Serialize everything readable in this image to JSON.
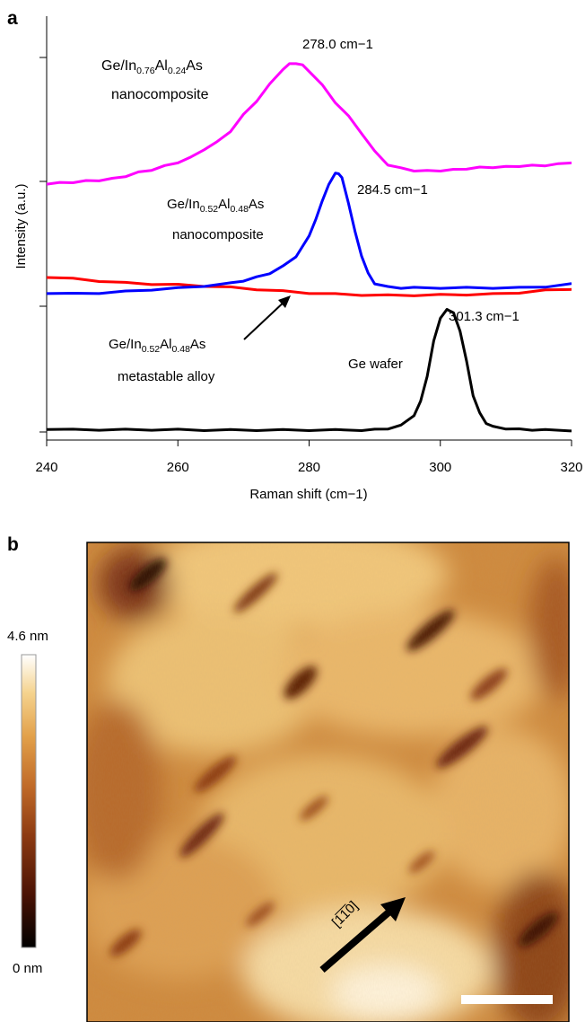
{
  "panels": {
    "a": "a",
    "b": "b"
  },
  "chart_data": {
    "type": "line",
    "xlabel": "Raman shift (cm−1)",
    "ylabel": "Intensity (a.u.)",
    "xlim": [
      240,
      320
    ],
    "ylim": [
      0,
      100
    ],
    "x_ticks": [
      240,
      260,
      280,
      300,
      320
    ],
    "x_tick_labels": [
      "240",
      "260",
      "280",
      "300",
      "320"
    ],
    "grid": false,
    "legend": "none",
    "series": [
      {
        "name": "Ge/In0.76Al0.24As nanocomposite",
        "color": "#ff00ff",
        "x": [
          240,
          242,
          244,
          246,
          248,
          250,
          252,
          254,
          256,
          258,
          260,
          262,
          264,
          266,
          268,
          270,
          272,
          274,
          276,
          277,
          278,
          279,
          280,
          282,
          284,
          286,
          288,
          290,
          292,
          294,
          296,
          298,
          300,
          302,
          304,
          306,
          308,
          310,
          312,
          314,
          316,
          318,
          320
        ],
        "y": [
          66.3,
          66.5,
          66.7,
          67.0,
          67.2,
          67.6,
          68.3,
          69.3,
          70.0,
          71.0,
          72.0,
          73.3,
          75.5,
          77.4,
          80.3,
          84.7,
          88.4,
          92.8,
          96.9,
          98.2,
          98.5,
          97.9,
          96.4,
          92.6,
          88.0,
          84.3,
          79.8,
          74.9,
          71.4,
          70.4,
          69.8,
          69.7,
          69.8,
          70.0,
          70.3,
          70.6,
          70.7,
          70.8,
          71.0,
          71.1,
          71.2,
          71.5,
          72.0
        ]
      },
      {
        "name": "Ge/In0.52Al0.48As nanocomposite",
        "color": "#0000ff",
        "x": [
          240,
          244,
          248,
          252,
          256,
          260,
          264,
          268,
          270,
          272,
          274,
          276,
          278,
          280,
          281,
          282,
          283,
          284,
          284.5,
          285,
          286,
          287,
          288,
          289,
          290,
          292,
          294,
          296,
          300,
          304,
          308,
          312,
          316,
          320
        ],
        "y": [
          37.1,
          36.9,
          37.1,
          37.5,
          38.0,
          38.4,
          39.0,
          39.7,
          40.4,
          41.3,
          42.4,
          44.2,
          46.9,
          52.2,
          56.8,
          61.5,
          66.2,
          69.0,
          69.1,
          67.8,
          61.2,
          53.4,
          47.1,
          42.3,
          39.7,
          38.7,
          38.5,
          38.5,
          38.5,
          38.5,
          38.5,
          38.5,
          38.8,
          39.5
        ]
      },
      {
        "name": "Ge/In0.52Al0.48As metastable alloy",
        "color": "#ff0000",
        "x": [
          240,
          244,
          248,
          252,
          256,
          260,
          264,
          268,
          272,
          276,
          280,
          284,
          288,
          292,
          296,
          300,
          304,
          308,
          312,
          316,
          320
        ],
        "y": [
          41.4,
          40.9,
          40.3,
          39.8,
          39.5,
          39.3,
          39.0,
          38.6,
          38.1,
          37.6,
          37.1,
          36.8,
          36.6,
          36.5,
          36.5,
          36.6,
          36.7,
          36.8,
          37.2,
          37.8,
          38.2
        ]
      },
      {
        "name": "Ge wafer",
        "color": "#000000",
        "x": [
          240,
          244,
          248,
          252,
          256,
          260,
          264,
          268,
          272,
          276,
          280,
          284,
          288,
          290,
          292,
          294,
          296,
          297,
          298,
          299,
          300,
          301,
          301.3,
          302,
          303,
          304,
          305,
          306,
          307,
          308,
          310,
          312,
          314,
          316,
          320
        ],
        "y": [
          0.8,
          0.6,
          0.6,
          0.6,
          0.6,
          0.6,
          0.5,
          0.5,
          0.5,
          0.5,
          0.5,
          0.5,
          0.5,
          0.6,
          0.9,
          1.7,
          4.5,
          8.1,
          15.0,
          24.2,
          30.5,
          32.6,
          32.6,
          31.7,
          27.1,
          18.8,
          9.8,
          5.0,
          2.4,
          1.4,
          0.9,
          0.7,
          0.6,
          0.5,
          0.4
        ]
      }
    ],
    "annotations": {
      "peak1": "278.0 cm−1",
      "peak2": "284.5 cm−1",
      "peak3": "301.3 cm−1",
      "label1": {
        "pre": "Ge/In",
        "s1": "0.76",
        "mid": "Al",
        "s2": "0.24",
        "post": "As",
        "line2": "nanocomposite"
      },
      "label2": {
        "pre": "Ge/In",
        "s1": "0.52",
        "mid": "Al",
        "s2": "0.48",
        "post": "As",
        "line2": "nanocomposite"
      },
      "label3": {
        "pre": "Ge/In",
        "s1": "0.52",
        "mid": "Al",
        "s2": "0.48",
        "post": "As",
        "line2": "metastable alloy"
      },
      "label4": "Ge wafer"
    }
  },
  "afm": {
    "scale_max": "4.6 nm",
    "scale_min": "0 nm",
    "direction": "[1̅1̅0]",
    "colors": [
      "#000000",
      "#4a1204",
      "#8c3a12",
      "#c06a28",
      "#e2a04a",
      "#f5d38e",
      "#ffffff"
    ]
  }
}
